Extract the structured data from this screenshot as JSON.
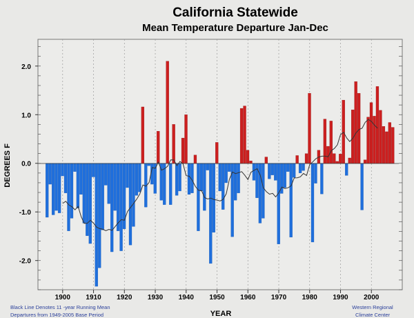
{
  "chart_data": {
    "type": "bar",
    "title": "California Statewide",
    "subtitle": "Mean Temperature Departure Jan-Dec",
    "xlabel": "YEAR",
    "ylabel": "DEGREES F",
    "xlim": [
      1892,
      2010
    ],
    "ylim": [
      -2.6,
      2.55
    ],
    "grid": "vertical dotted at decades",
    "x_ticks": [
      "1900",
      "1910",
      "1920",
      "1930",
      "1940",
      "1950",
      "1960",
      "1970",
      "1980",
      "1990",
      "2000"
    ],
    "y_ticks": [
      "2.0",
      "1.0",
      "0.0",
      "-1.0",
      "-2.0"
    ],
    "colors": {
      "positive": "#cc1f1f",
      "negative": "#1f6fdc",
      "running_mean": "#333333",
      "background": "#e9e9e7"
    },
    "running_mean_window": 11,
    "start_year": 1895,
    "values": [
      -1.11,
      -0.43,
      -1.06,
      -0.97,
      -1.02,
      -0.26,
      -0.61,
      -1.39,
      -1.13,
      -0.17,
      -0.92,
      -0.64,
      -1.23,
      -1.49,
      -1.65,
      -0.28,
      -2.53,
      -2.15,
      -1.37,
      -0.45,
      -0.83,
      -1.82,
      -0.97,
      -1.39,
      -1.8,
      -1.35,
      -0.5,
      -1.68,
      -1.3,
      -0.66,
      -0.59,
      1.16,
      -0.9,
      -0.05,
      -0.43,
      -0.62,
      0.66,
      -0.76,
      -0.85,
      2.1,
      -0.85,
      0.8,
      -0.66,
      -0.57,
      0.52,
      1.0,
      -0.64,
      -0.61,
      0.17,
      -1.39,
      -0.57,
      -0.97,
      -0.14,
      -2.06,
      -1.42,
      0.43,
      -0.57,
      -0.95,
      -0.4,
      -0.17,
      -1.51,
      -0.76,
      -0.61,
      1.13,
      1.18,
      0.27,
      0.05,
      -0.35,
      -0.71,
      -1.23,
      -1.13,
      0.13,
      -0.32,
      -0.24,
      -0.35,
      -1.66,
      -0.62,
      -0.5,
      -0.17,
      -1.52,
      -0.29,
      0.16,
      -0.2,
      -0.15,
      0.2,
      1.44,
      -1.62,
      -0.41,
      0.27,
      -0.63,
      0.91,
      0.35,
      0.87,
      0.2,
      0.04,
      0.19,
      1.3,
      -0.25,
      0.11,
      1.1,
      1.68,
      1.44,
      -0.96,
      0.07,
      0.95,
      1.25,
      0.97,
      1.58,
      1.09,
      0.76,
      0.65,
      0.84,
      0.74
    ],
    "notes": {
      "left_line1": "Black Line Denotes 11 -year Running Mean",
      "left_line2": "Departures from 1949-2005 Base Period",
      "right_line1": "Western Regional",
      "right_line2": "Climate Center"
    }
  }
}
